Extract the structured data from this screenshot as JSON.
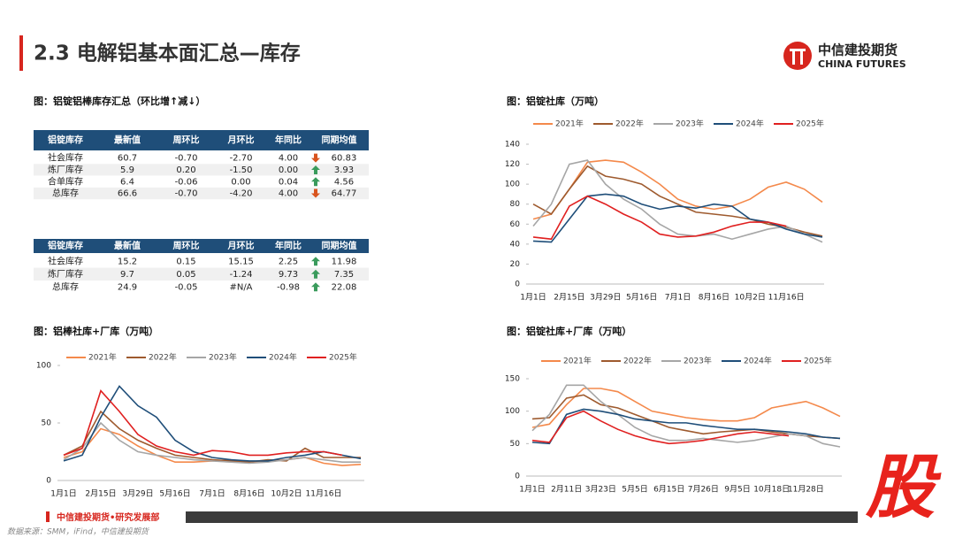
{
  "header": {
    "title": "2.3 电解铝基本面汇总—库存",
    "logo_cn": "中信建投期货",
    "logo_en": "CHINA FUTURES"
  },
  "summary": {
    "title": "图：铝锭铝棒库存汇总（环比增↑减↓）",
    "tables": [
      {
        "columns": [
          "铝锭库存",
          "最新值",
          "周环比",
          "月环比",
          "年同比",
          "同期均值"
        ],
        "rows": [
          {
            "cells": [
              "社会库存",
              "60.7",
              "-0.70",
              "-2.70",
              "4.00",
              "60.83"
            ],
            "colors": [
              "#222",
              "#222",
              "#2e9e4f",
              "#2e9e4f",
              "#e02020",
              "#222"
            ],
            "trend": "down"
          },
          {
            "cells": [
              "炼厂库存",
              "5.9",
              "0.20",
              "-1.50",
              "0.00",
              "3.93"
            ],
            "colors": [
              "#222",
              "#222",
              "#e02020",
              "#2e9e4f",
              "#222",
              "#222"
            ],
            "trend": "up"
          },
          {
            "cells": [
              "合单库存",
              "6.4",
              "-0.06",
              "0.00",
              "0.04",
              "4.56"
            ],
            "colors": [
              "#222",
              "#222",
              "#2e9e4f",
              "#e02020",
              "#e02020",
              "#222"
            ],
            "trend": "up"
          },
          {
            "cells": [
              "总库存",
              "66.6",
              "-0.70",
              "-4.20",
              "4.00",
              "64.77"
            ],
            "colors": [
              "#222",
              "#222",
              "#2e9e4f",
              "#2e9e4f",
              "#e02020",
              "#222"
            ],
            "trend": "down"
          }
        ]
      },
      {
        "columns": [
          "铝锭库存",
          "最新值",
          "周环比",
          "月环比",
          "年同比",
          "同期均值"
        ],
        "rows": [
          {
            "cells": [
              "社会库存",
              "15.2",
              "0.15",
              "15.15",
              "2.25",
              "11.98"
            ],
            "colors": [
              "#222",
              "#222",
              "#e02020",
              "#e02020",
              "#e02020",
              "#222"
            ],
            "trend": "up"
          },
          {
            "cells": [
              "炼厂库存",
              "9.7",
              "0.05",
              "-1.24",
              "9.73",
              "7.35"
            ],
            "colors": [
              "#222",
              "#222",
              "#e02020",
              "#2e9e4f",
              "#e02020",
              "#222"
            ],
            "trend": "up"
          },
          {
            "cells": [
              "总库存",
              "24.9",
              "-0.05",
              "#N/A",
              "-0.98",
              "22.08"
            ],
            "colors": [
              "#222",
              "#222",
              "#2e9e4f",
              "#222",
              "#2e9e4f",
              "#222"
            ],
            "trend": "up"
          }
        ]
      }
    ]
  },
  "chart_data": [
    {
      "type": "line",
      "title": "图：铝锭社库（万吨）",
      "grid": false,
      "categories": [
        "1月1日",
        null,
        "2月15日",
        null,
        "3月29日",
        null,
        "5月16日",
        null,
        "7月1日",
        null,
        "8月16日",
        null,
        "10月2日",
        null,
        "11月16日",
        null,
        null
      ],
      "ylim": [
        0,
        140
      ],
      "yticks": [
        0,
        20,
        40,
        60,
        80,
        100,
        120,
        140
      ],
      "series": [
        {
          "name": "2021年",
          "color": "#f4894b",
          "values": [
            65,
            70,
            95,
            122,
            124,
            122,
            112,
            100,
            85,
            78,
            75,
            78,
            85,
            97,
            102,
            95,
            82
          ]
        },
        {
          "name": "2022年",
          "color": "#9e5a2e",
          "values": [
            80,
            70,
            95,
            118,
            108,
            105,
            100,
            88,
            80,
            72,
            70,
            68,
            65,
            60,
            57,
            52,
            48
          ]
        },
        {
          "name": "2023年",
          "color": "#a6a6a6",
          "values": [
            58,
            80,
            120,
            124,
            100,
            85,
            75,
            60,
            50,
            48,
            50,
            45,
            50,
            55,
            58,
            50,
            42
          ]
        },
        {
          "name": "2024年",
          "color": "#1f4e79",
          "values": [
            43,
            42,
            65,
            88,
            90,
            88,
            80,
            75,
            78,
            76,
            80,
            78,
            65,
            62,
            55,
            50,
            47
          ]
        },
        {
          "name": "2025年",
          "color": "#e02020",
          "values": [
            47,
            45,
            78,
            88,
            80,
            70,
            62,
            50,
            47,
            48,
            52,
            58,
            62,
            62,
            58,
            null,
            null
          ]
        }
      ]
    },
    {
      "type": "line",
      "title": "图：铝棒社库+厂库（万吨）",
      "grid": false,
      "categories": [
        "1月1日",
        null,
        "2月15日",
        null,
        "3月29日",
        null,
        "5月16日",
        null,
        "7月1日",
        null,
        "8月16日",
        null,
        "10月2日",
        null,
        "11月16日",
        null,
        null
      ],
      "ylim": [
        0,
        100
      ],
      "yticks": [
        0,
        50,
        100
      ],
      "series": [
        {
          "name": "2021年",
          "color": "#f4894b",
          "values": [
            20,
            25,
            45,
            40,
            30,
            22,
            16,
            16,
            17,
            18,
            16,
            17,
            18,
            20,
            15,
            13,
            14
          ]
        },
        {
          "name": "2022年",
          "color": "#9e5a2e",
          "values": [
            22,
            30,
            60,
            45,
            35,
            28,
            22,
            20,
            18,
            17,
            16,
            18,
            17,
            28,
            20,
            20,
            20
          ]
        },
        {
          "name": "2023年",
          "color": "#a6a6a6",
          "values": [
            18,
            28,
            50,
            35,
            25,
            22,
            20,
            18,
            17,
            16,
            15,
            16,
            18,
            20,
            18,
            16,
            16
          ]
        },
        {
          "name": "2024年",
          "color": "#1f4e79",
          "values": [
            17,
            22,
            55,
            82,
            65,
            55,
            35,
            25,
            20,
            18,
            17,
            17,
            20,
            22,
            25,
            22,
            19
          ]
        },
        {
          "name": "2025年",
          "color": "#e02020",
          "values": [
            22,
            28,
            78,
            60,
            40,
            30,
            25,
            22,
            26,
            25,
            22,
            22,
            24,
            25,
            25,
            22,
            null
          ]
        }
      ]
    },
    {
      "type": "line",
      "title": "图：铝锭社库+厂库（万吨）",
      "grid": false,
      "categories": [
        "1月1日",
        null,
        "2月11日",
        null,
        "3月23日",
        null,
        "5月5日",
        null,
        "6月15日",
        null,
        "7月26日",
        null,
        "9月5日",
        null,
        "10月18日",
        null,
        "11月28日",
        null,
        null
      ],
      "ylim": [
        0,
        150
      ],
      "yticks": [
        0,
        50,
        100,
        150
      ],
      "series": [
        {
          "name": "2021年",
          "color": "#f4894b",
          "values": [
            75,
            80,
            110,
            135,
            135,
            130,
            115,
            100,
            95,
            90,
            87,
            85,
            85,
            90,
            105,
            110,
            115,
            105,
            92
          ]
        },
        {
          "name": "2022年",
          "color": "#9e5a2e",
          "values": [
            88,
            90,
            120,
            125,
            110,
            105,
            95,
            85,
            75,
            70,
            65,
            68,
            70,
            72,
            68,
            65,
            62,
            60,
            58
          ]
        },
        {
          "name": "2023年",
          "color": "#a6a6a6",
          "values": [
            70,
            95,
            140,
            140,
            115,
            95,
            75,
            62,
            55,
            55,
            58,
            55,
            52,
            55,
            60,
            65,
            62,
            50,
            45
          ]
        },
        {
          "name": "2024年",
          "color": "#1f4e79",
          "values": [
            52,
            50,
            95,
            103,
            100,
            95,
            88,
            85,
            82,
            82,
            78,
            75,
            72,
            72,
            70,
            68,
            65,
            60,
            58
          ]
        },
        {
          "name": "2025年",
          "color": "#e02020",
          "values": [
            55,
            52,
            90,
            100,
            85,
            72,
            62,
            55,
            50,
            52,
            55,
            60,
            65,
            68,
            65,
            62,
            null,
            null,
            null
          ]
        }
      ]
    }
  ],
  "footer": {
    "org": "中信建投期货•研究发展部",
    "source": "数据来源：SMM，iFind，中信建投期货",
    "badge": "股"
  }
}
